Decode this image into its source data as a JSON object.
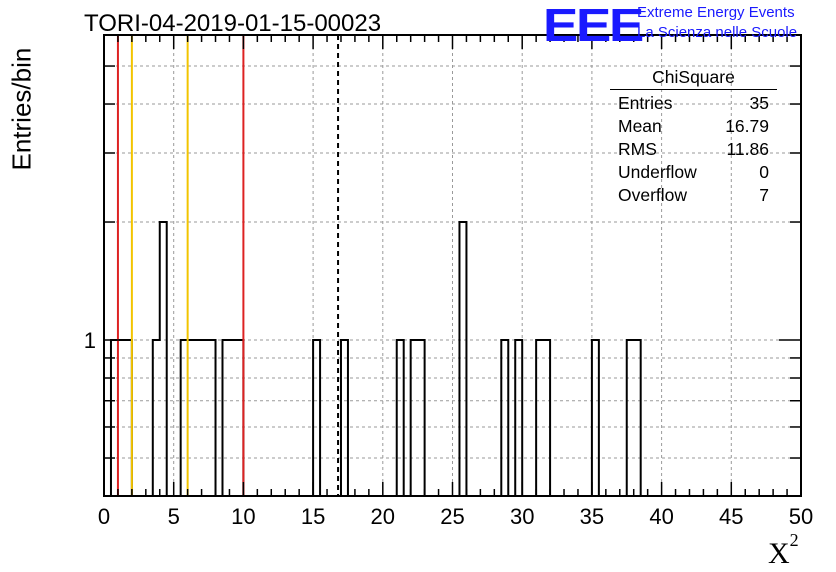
{
  "logo": {
    "letters": "EEE",
    "line1": "Extreme Energy Events",
    "line2": "La Scienza nelle Scuole"
  },
  "stats": {
    "name": "ChiSquare",
    "rows": [
      {
        "label": "Entries",
        "value": "35"
      },
      {
        "label": "Mean",
        "value": "16.79"
      },
      {
        "label": "RMS",
        "value": "11.86"
      },
      {
        "label": "Underflow",
        "value": "0"
      },
      {
        "label": "Overflow",
        "value": "7"
      }
    ]
  },
  "chart_data": {
    "type": "histogram",
    "title": "TORI-04-2019-01-15-00023",
    "xlabel": "X",
    "xlabel_sup": "2",
    "ylabel": "Entries/bin",
    "xlim": [
      0,
      50
    ],
    "ylog": true,
    "ylim": [
      0.4,
      6
    ],
    "x_ticks": [
      0,
      5,
      10,
      15,
      20,
      25,
      30,
      35,
      40,
      45,
      50
    ],
    "y_tick_labels": [
      {
        "value": 1,
        "label": "1"
      }
    ],
    "grid": true,
    "bin_width": 0.5,
    "bins": [
      {
        "x": 0.5,
        "count": 1
      },
      {
        "x": 1.0,
        "count": 1
      },
      {
        "x": 1.5,
        "count": 1
      },
      {
        "x": 3.5,
        "count": 1
      },
      {
        "x": 4.0,
        "count": 2
      },
      {
        "x": 5.5,
        "count": 1
      },
      {
        "x": 6.0,
        "count": 1
      },
      {
        "x": 6.5,
        "count": 1
      },
      {
        "x": 7.0,
        "count": 1
      },
      {
        "x": 7.5,
        "count": 1
      },
      {
        "x": 8.5,
        "count": 1
      },
      {
        "x": 9.0,
        "count": 1
      },
      {
        "x": 9.5,
        "count": 1
      },
      {
        "x": 15.0,
        "count": 1
      },
      {
        "x": 17.0,
        "count": 1
      },
      {
        "x": 21.0,
        "count": 1
      },
      {
        "x": 22.0,
        "count": 1
      },
      {
        "x": 22.5,
        "count": 1
      },
      {
        "x": 25.5,
        "count": 2
      },
      {
        "x": 28.5,
        "count": 1
      },
      {
        "x": 29.5,
        "count": 1
      },
      {
        "x": 31.0,
        "count": 1
      },
      {
        "x": 31.5,
        "count": 1
      },
      {
        "x": 35.0,
        "count": 1
      },
      {
        "x": 37.5,
        "count": 1
      },
      {
        "x": 38.0,
        "count": 1
      }
    ],
    "vertical_lines": [
      {
        "x": 1.0,
        "color": "#dd2222",
        "style": "solid"
      },
      {
        "x": 2.0,
        "color": "#f2c400",
        "style": "solid"
      },
      {
        "x": 6.0,
        "color": "#f2c400",
        "style": "solid"
      },
      {
        "x": 10.0,
        "color": "#dd2222",
        "style": "solid"
      },
      {
        "x": 16.79,
        "color": "#000000",
        "style": "dashed"
      }
    ]
  }
}
